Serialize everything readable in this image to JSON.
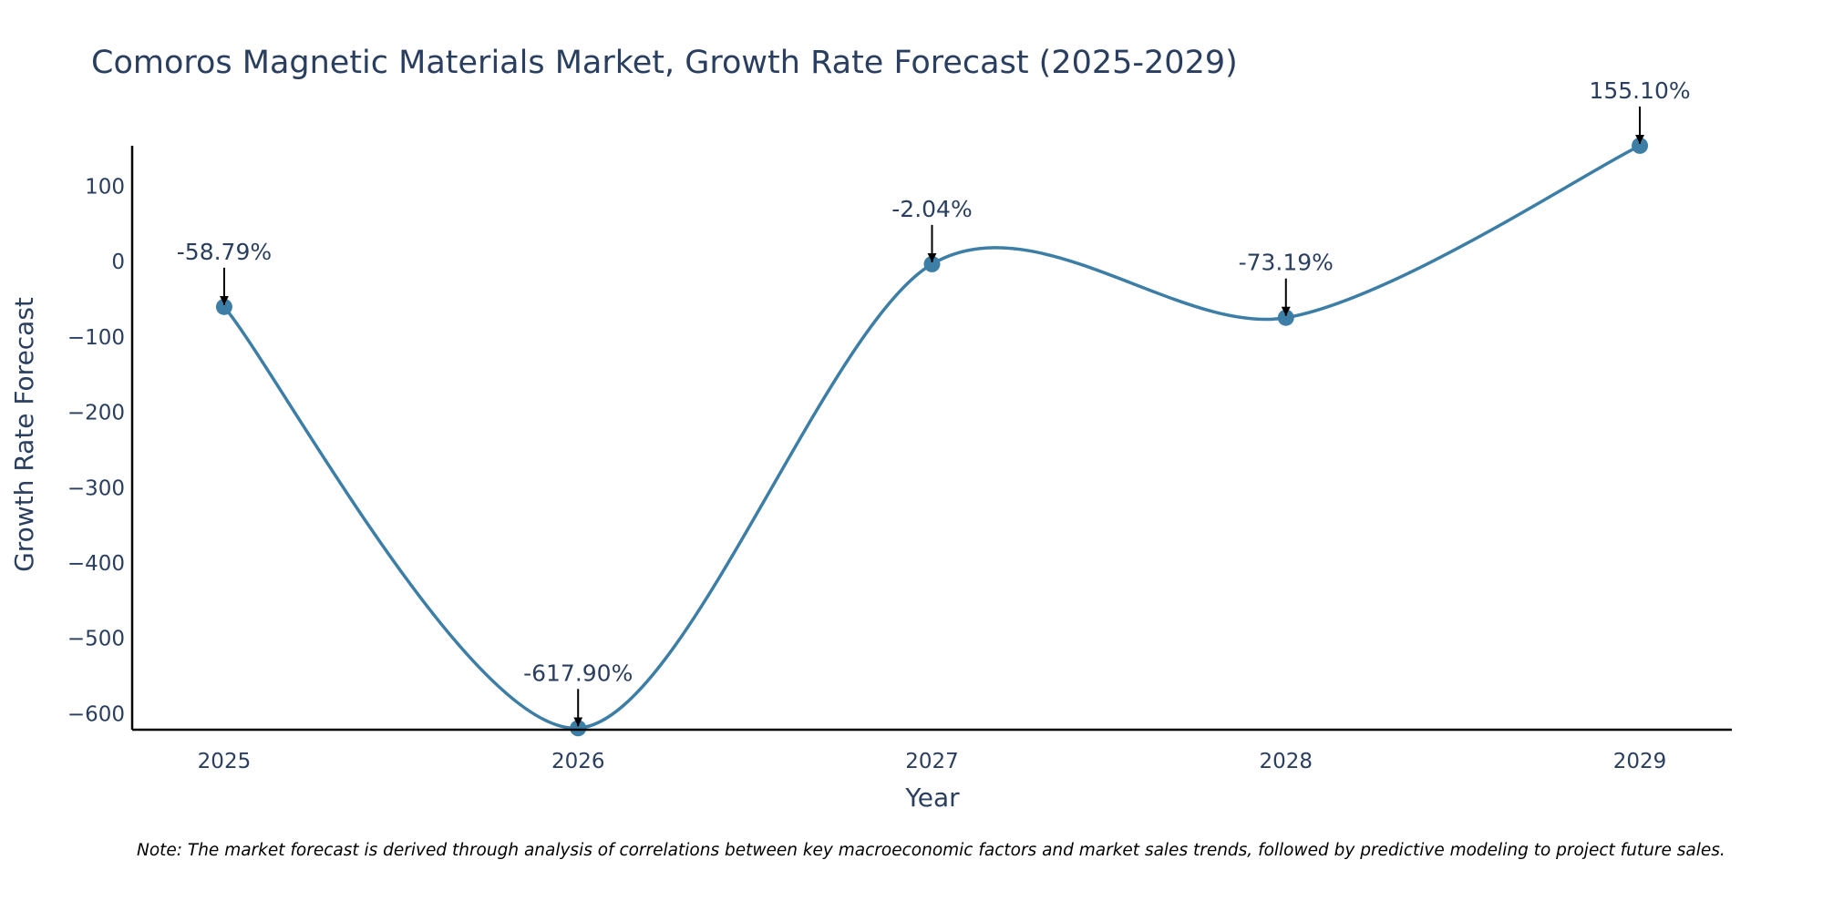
{
  "colors": {
    "line": "#3d7ea6",
    "marker": "#3d7ea6",
    "axis": "#000000",
    "text": "#2a3f5f",
    "arrow": "#000000"
  },
  "chart_data": {
    "type": "line",
    "title": "Comoros Magnetic Materials Market, Growth Rate Forecast (2025-2029)",
    "xlabel": "Year",
    "ylabel": "Growth Rate Forecast",
    "x": [
      2025,
      2026,
      2027,
      2028,
      2029
    ],
    "x_tick_labels": [
      "2025",
      "2026",
      "2027",
      "2028",
      "2029"
    ],
    "xlim": [
      2024.74,
      2029.26
    ],
    "y": [
      -58.79,
      -617.9,
      -2.04,
      -73.19,
      155.1
    ],
    "data_labels": [
      "-58.79%",
      "-617.90%",
      "-2.04%",
      "-73.19%",
      "155.10%"
    ],
    "ylim": [
      -620,
      155
    ],
    "y_ticks": [
      100,
      0,
      -100,
      -200,
      -300,
      -400,
      -500,
      -600
    ],
    "y_tick_labels": [
      "100",
      "0",
      "−100",
      "−200",
      "−300",
      "−400",
      "−500",
      "−600"
    ],
    "line_shape": "spline",
    "grid": false,
    "legend": false
  },
  "note": "Note: The market forecast is derived through analysis of correlations between key macroeconomic factors and market sales trends, followed by predictive modeling to project future sales."
}
